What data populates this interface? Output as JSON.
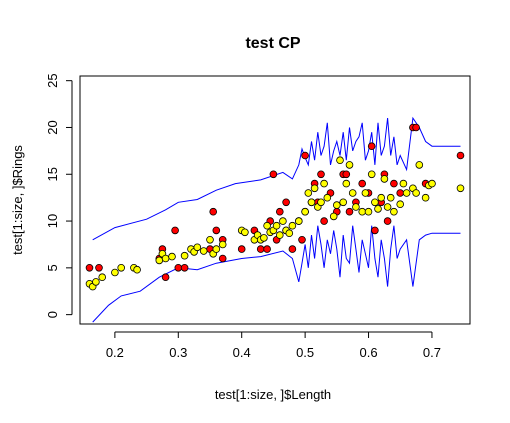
{
  "chart_data": {
    "type": "scatter",
    "title": "test CP",
    "xlabel": "test[1:size, ]$Length",
    "ylabel": "test[1:size, ]$Rings",
    "xlim": [
      0.145,
      0.76
    ],
    "ylim": [
      -1,
      25.5
    ],
    "xticks": [
      "0.2",
      "0.3",
      "0.4",
      "0.5",
      "0.6",
      "0.7"
    ],
    "yticks": [
      "0",
      "5",
      "10",
      "15",
      "20",
      "25"
    ],
    "colors": {
      "red": "#ff0000",
      "yellow": "#ffff00",
      "band": "#0000ff",
      "frame": "#000000"
    },
    "series": [
      {
        "color": "red",
        "points": [
          [
            0.16,
            5
          ],
          [
            0.175,
            5
          ],
          [
            0.27,
            6
          ],
          [
            0.275,
            7
          ],
          [
            0.28,
            4
          ],
          [
            0.295,
            9
          ],
          [
            0.3,
            5
          ],
          [
            0.31,
            5
          ],
          [
            0.35,
            7
          ],
          [
            0.355,
            11
          ],
          [
            0.36,
            9
          ],
          [
            0.37,
            8
          ],
          [
            0.37,
            6
          ],
          [
            0.4,
            7
          ],
          [
            0.42,
            9
          ],
          [
            0.43,
            7
          ],
          [
            0.44,
            7
          ],
          [
            0.445,
            10
          ],
          [
            0.45,
            15
          ],
          [
            0.455,
            8
          ],
          [
            0.46,
            11
          ],
          [
            0.47,
            12
          ],
          [
            0.47,
            9
          ],
          [
            0.48,
            7
          ],
          [
            0.49,
            10
          ],
          [
            0.495,
            8
          ],
          [
            0.5,
            17
          ],
          [
            0.5,
            11
          ],
          [
            0.51,
            12
          ],
          [
            0.515,
            14
          ],
          [
            0.52,
            12
          ],
          [
            0.525,
            15
          ],
          [
            0.53,
            10
          ],
          [
            0.54,
            13
          ],
          [
            0.55,
            11
          ],
          [
            0.56,
            15
          ],
          [
            0.565,
            15
          ],
          [
            0.57,
            11
          ],
          [
            0.58,
            12
          ],
          [
            0.59,
            14
          ],
          [
            0.6,
            13
          ],
          [
            0.605,
            18
          ],
          [
            0.61,
            9
          ],
          [
            0.62,
            12
          ],
          [
            0.625,
            15
          ],
          [
            0.63,
            10
          ],
          [
            0.64,
            14
          ],
          [
            0.65,
            13
          ],
          [
            0.67,
            20
          ],
          [
            0.675,
            20
          ],
          [
            0.69,
            14
          ],
          [
            0.745,
            17
          ]
        ]
      },
      {
        "color": "yellow",
        "points": [
          [
            0.16,
            3.3
          ],
          [
            0.165,
            3
          ],
          [
            0.17,
            3.5
          ],
          [
            0.18,
            4
          ],
          [
            0.2,
            4.5
          ],
          [
            0.21,
            5
          ],
          [
            0.23,
            5
          ],
          [
            0.235,
            4.8
          ],
          [
            0.27,
            5.8
          ],
          [
            0.275,
            6.5
          ],
          [
            0.28,
            6
          ],
          [
            0.29,
            6.2
          ],
          [
            0.31,
            6.3
          ],
          [
            0.32,
            7
          ],
          [
            0.325,
            6.7
          ],
          [
            0.33,
            7.2
          ],
          [
            0.34,
            6.8
          ],
          [
            0.35,
            8
          ],
          [
            0.355,
            6.5
          ],
          [
            0.36,
            7
          ],
          [
            0.37,
            7.5
          ],
          [
            0.4,
            9
          ],
          [
            0.405,
            8.8
          ],
          [
            0.42,
            8
          ],
          [
            0.425,
            8.5
          ],
          [
            0.43,
            8
          ],
          [
            0.435,
            8.2
          ],
          [
            0.44,
            9.5
          ],
          [
            0.445,
            8.8
          ],
          [
            0.45,
            9
          ],
          [
            0.455,
            9.5
          ],
          [
            0.46,
            8.5
          ],
          [
            0.465,
            10
          ],
          [
            0.47,
            9
          ],
          [
            0.475,
            8.7
          ],
          [
            0.48,
            9.5
          ],
          [
            0.49,
            10
          ],
          [
            0.5,
            11
          ],
          [
            0.505,
            13
          ],
          [
            0.51,
            12
          ],
          [
            0.515,
            13.5
          ],
          [
            0.52,
            11.5
          ],
          [
            0.525,
            12
          ],
          [
            0.53,
            14
          ],
          [
            0.535,
            12.5
          ],
          [
            0.545,
            10.5
          ],
          [
            0.55,
            11.7
          ],
          [
            0.555,
            16.5
          ],
          [
            0.56,
            12
          ],
          [
            0.565,
            14
          ],
          [
            0.57,
            16
          ],
          [
            0.575,
            13
          ],
          [
            0.58,
            11.5
          ],
          [
            0.59,
            11
          ],
          [
            0.595,
            13
          ],
          [
            0.6,
            11
          ],
          [
            0.605,
            15
          ],
          [
            0.61,
            12
          ],
          [
            0.615,
            11.3
          ],
          [
            0.62,
            12.5
          ],
          [
            0.625,
            14.5
          ],
          [
            0.63,
            11.5
          ],
          [
            0.635,
            12.5
          ],
          [
            0.64,
            11
          ],
          [
            0.65,
            11.8
          ],
          [
            0.655,
            14
          ],
          [
            0.66,
            13
          ],
          [
            0.67,
            13.5
          ],
          [
            0.675,
            13
          ],
          [
            0.68,
            16
          ],
          [
            0.69,
            12.5
          ],
          [
            0.695,
            13.8
          ],
          [
            0.7,
            14
          ],
          [
            0.745,
            13.5
          ]
        ]
      }
    ],
    "band_upper": [
      [
        0.165,
        8
      ],
      [
        0.2,
        9.3
      ],
      [
        0.25,
        10.2
      ],
      [
        0.28,
        11.2
      ],
      [
        0.3,
        12
      ],
      [
        0.33,
        12.3
      ],
      [
        0.36,
        13.3
      ],
      [
        0.39,
        14
      ],
      [
        0.43,
        14.4
      ],
      [
        0.465,
        15.2
      ],
      [
        0.48,
        14.5
      ],
      [
        0.49,
        16
      ],
      [
        0.495,
        17.7
      ],
      [
        0.5,
        16.8
      ],
      [
        0.505,
        16
      ],
      [
        0.51,
        18.5
      ],
      [
        0.515,
        16.5
      ],
      [
        0.52,
        19.5
      ],
      [
        0.525,
        17
      ],
      [
        0.53,
        18
      ],
      [
        0.535,
        20.5
      ],
      [
        0.54,
        16
      ],
      [
        0.545,
        17.5
      ],
      [
        0.55,
        18.5
      ],
      [
        0.555,
        17
      ],
      [
        0.56,
        19.5
      ],
      [
        0.565,
        16.5
      ],
      [
        0.57,
        20
      ],
      [
        0.575,
        17.5
      ],
      [
        0.58,
        18.5
      ],
      [
        0.585,
        19
      ],
      [
        0.59,
        20.5
      ],
      [
        0.595,
        16.5
      ],
      [
        0.6,
        17.5
      ],
      [
        0.605,
        19.5
      ],
      [
        0.61,
        16
      ],
      [
        0.615,
        20.5
      ],
      [
        0.62,
        17
      ],
      [
        0.625,
        18
      ],
      [
        0.63,
        21
      ],
      [
        0.635,
        17
      ],
      [
        0.64,
        19
      ],
      [
        0.645,
        16
      ],
      [
        0.65,
        17
      ],
      [
        0.66,
        15.5
      ],
      [
        0.67,
        21
      ],
      [
        0.68,
        20
      ],
      [
        0.69,
        18.5
      ],
      [
        0.7,
        18
      ],
      [
        0.745,
        18
      ]
    ],
    "band_lower": [
      [
        0.165,
        -0.8
      ],
      [
        0.19,
        1
      ],
      [
        0.21,
        2
      ],
      [
        0.24,
        2.5
      ],
      [
        0.27,
        4
      ],
      [
        0.3,
        5
      ],
      [
        0.33,
        4.8
      ],
      [
        0.36,
        5.5
      ],
      [
        0.4,
        6
      ],
      [
        0.43,
        6.2
      ],
      [
        0.465,
        6.8
      ],
      [
        0.48,
        6
      ],
      [
        0.49,
        3.5
      ],
      [
        0.495,
        5.5
      ],
      [
        0.5,
        7.5
      ],
      [
        0.505,
        5
      ],
      [
        0.51,
        8.5
      ],
      [
        0.515,
        6
      ],
      [
        0.52,
        9.5
      ],
      [
        0.525,
        7.5
      ],
      [
        0.53,
        5
      ],
      [
        0.535,
        8
      ],
      [
        0.54,
        6.5
      ],
      [
        0.545,
        9
      ],
      [
        0.55,
        7
      ],
      [
        0.555,
        4
      ],
      [
        0.56,
        8.5
      ],
      [
        0.565,
        6
      ],
      [
        0.57,
        5.5
      ],
      [
        0.575,
        9.5
      ],
      [
        0.58,
        7
      ],
      [
        0.585,
        4.5
      ],
      [
        0.59,
        8
      ],
      [
        0.595,
        6.5
      ],
      [
        0.6,
        5
      ],
      [
        0.605,
        9.5
      ],
      [
        0.61,
        6
      ],
      [
        0.615,
        4
      ],
      [
        0.62,
        8
      ],
      [
        0.625,
        6
      ],
      [
        0.63,
        3
      ],
      [
        0.635,
        7
      ],
      [
        0.64,
        9.5
      ],
      [
        0.645,
        6
      ],
      [
        0.65,
        7
      ],
      [
        0.66,
        8
      ],
      [
        0.67,
        3
      ],
      [
        0.68,
        8
      ],
      [
        0.69,
        8.5
      ],
      [
        0.7,
        8.7
      ],
      [
        0.745,
        8.7
      ]
    ]
  }
}
